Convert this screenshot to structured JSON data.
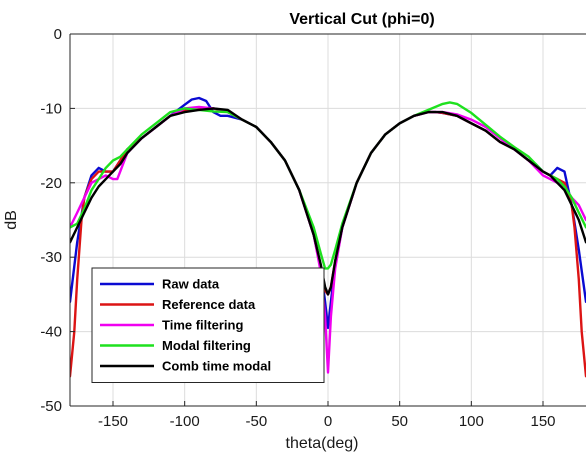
{
  "chart_data": {
    "type": "line",
    "title": "Vertical Cut (phi=0)",
    "xlabel": "theta(deg)",
    "ylabel": "dB",
    "xlim": [
      -180,
      180
    ],
    "ylim": [
      -50,
      0
    ],
    "xticks": [
      -150,
      -100,
      -50,
      0,
      50,
      100,
      150
    ],
    "yticks": [
      0,
      -10,
      -20,
      -30,
      -40,
      -50
    ],
    "grid": true,
    "legend_position": "bottom-left",
    "series": [
      {
        "name": "Raw data",
        "color": "#0a0ad2",
        "x": [
          -180,
          -175,
          -170,
          -165,
          -160,
          -155,
          -150,
          -145,
          -140,
          -130,
          -120,
          -110,
          -100,
          -95,
          -90,
          -85,
          -80,
          -75,
          -70,
          -60,
          -50,
          -40,
          -30,
          -20,
          -10,
          -5,
          -2,
          0,
          2,
          5,
          10,
          20,
          30,
          40,
          50,
          60,
          70,
          75,
          80,
          90,
          100,
          110,
          120,
          130,
          140,
          145,
          150,
          155,
          160,
          165,
          170,
          175,
          180
        ],
        "y": [
          -36,
          -28,
          -22,
          -19,
          -18,
          -18.5,
          -18.5,
          -17,
          -15.5,
          -14,
          -12.5,
          -11,
          -9.5,
          -8.8,
          -8.6,
          -9,
          -10.5,
          -11,
          -11,
          -11.5,
          -12.5,
          -14.5,
          -17,
          -21,
          -27,
          -31.5,
          -36,
          -39.5,
          -36,
          -31,
          -26,
          -20,
          -16,
          -13.5,
          -12,
          -11,
          -10.5,
          -10.5,
          -10.6,
          -11,
          -12,
          -13,
          -14.5,
          -15.5,
          -17,
          -17.5,
          -18.5,
          -19,
          -18,
          -18.5,
          -23,
          -29,
          -36
        ]
      },
      {
        "name": "Reference data",
        "color": "#dc1414",
        "x": [
          -180,
          -177,
          -175,
          -172,
          -170,
          -165,
          -160,
          -155,
          -150,
          -145,
          -140,
          -130,
          -120,
          -110,
          -100,
          -90,
          -80,
          -75,
          -70,
          -60,
          -50,
          -40,
          -30,
          -20,
          -10,
          -5,
          -2,
          0,
          2,
          5,
          10,
          20,
          30,
          40,
          50,
          60,
          70,
          75,
          80,
          90,
          100,
          110,
          120,
          130,
          140,
          150,
          155,
          160,
          165,
          170,
          172,
          175,
          177,
          180
        ],
        "y": [
          -46,
          -40,
          -33,
          -25,
          -22,
          -19.5,
          -18.5,
          -18.5,
          -18.5,
          -17,
          -15.5,
          -14,
          -12.5,
          -11,
          -10.2,
          -10,
          -10,
          -10.2,
          -10.5,
          -11.5,
          -12.5,
          -14.5,
          -17,
          -21,
          -27,
          -31.5,
          -34.5,
          -35,
          -34,
          -30.5,
          -26,
          -20,
          -16,
          -13.5,
          -12,
          -11,
          -10.5,
          -10.5,
          -10.6,
          -11,
          -12,
          -13,
          -14.5,
          -15.5,
          -17,
          -18.5,
          -19,
          -19.5,
          -20,
          -23,
          -26,
          -33,
          -40,
          -46
        ]
      },
      {
        "name": "Time filtering",
        "color": "#f000f0",
        "x": [
          -180,
          -175,
          -170,
          -165,
          -160,
          -155,
          -150,
          -147,
          -145,
          -140,
          -130,
          -120,
          -110,
          -100,
          -90,
          -80,
          -70,
          -60,
          -50,
          -40,
          -30,
          -20,
          -10,
          -5,
          -2,
          0,
          2,
          5,
          10,
          20,
          30,
          40,
          50,
          60,
          70,
          80,
          90,
          100,
          110,
          120,
          130,
          140,
          145,
          150,
          155,
          160,
          165,
          170,
          175,
          180
        ],
        "y": [
          -26,
          -24,
          -22,
          -20,
          -19.5,
          -19,
          -19.5,
          -19.5,
          -18.5,
          -16,
          -14,
          -12.5,
          -11,
          -10,
          -9.8,
          -10,
          -10.3,
          -11.5,
          -12.5,
          -14.5,
          -17,
          -21,
          -27,
          -32,
          -38,
          -45.5,
          -38,
          -31.5,
          -26,
          -20,
          -16,
          -13.5,
          -12,
          -11,
          -10.5,
          -10.5,
          -10.8,
          -11.5,
          -12.5,
          -14,
          -15.5,
          -17,
          -18,
          -19,
          -19.5,
          -20,
          -20.5,
          -22,
          -23,
          -25
        ]
      },
      {
        "name": "Modal filtering",
        "color": "#1ee11e",
        "x": [
          -180,
          -175,
          -170,
          -165,
          -160,
          -155,
          -150,
          -145,
          -140,
          -130,
          -120,
          -110,
          -100,
          -90,
          -80,
          -70,
          -60,
          -50,
          -40,
          -30,
          -20,
          -10,
          -5,
          -2,
          0,
          2,
          5,
          10,
          20,
          30,
          40,
          50,
          60,
          70,
          80,
          85,
          90,
          100,
          110,
          120,
          130,
          140,
          145,
          150,
          155,
          160,
          165,
          170,
          175,
          180
        ],
        "y": [
          -26,
          -25.5,
          -23.5,
          -21,
          -19.5,
          -18,
          -17,
          -16.5,
          -15.5,
          -13.5,
          -12,
          -10.5,
          -10,
          -10.2,
          -10.4,
          -10.5,
          -11.5,
          -12.5,
          -14.5,
          -17,
          -21,
          -26,
          -29.5,
          -31.5,
          -31.5,
          -31,
          -29,
          -25.5,
          -20,
          -16,
          -13.5,
          -12,
          -11,
          -10.2,
          -9.4,
          -9.2,
          -9.4,
          -10.6,
          -12.2,
          -13.8,
          -15.2,
          -16.5,
          -17.5,
          -18.5,
          -19,
          -19.5,
          -20.5,
          -22,
          -24,
          -26
        ]
      },
      {
        "name": "Comb time modal",
        "color": "#000000",
        "x": [
          -180,
          -175,
          -170,
          -165,
          -160,
          -155,
          -150,
          -145,
          -140,
          -130,
          -120,
          -110,
          -100,
          -90,
          -80,
          -70,
          -60,
          -50,
          -40,
          -30,
          -20,
          -10,
          -5,
          -2,
          0,
          2,
          5,
          10,
          20,
          30,
          40,
          50,
          60,
          70,
          80,
          90,
          100,
          110,
          120,
          130,
          140,
          150,
          155,
          160,
          165,
          170,
          175,
          180
        ],
        "y": [
          -28,
          -26,
          -24,
          -22,
          -20.5,
          -19.5,
          -18.5,
          -17.5,
          -16,
          -14,
          -12.5,
          -11,
          -10.5,
          -10.2,
          -10,
          -10.2,
          -11.5,
          -12.5,
          -14.5,
          -17,
          -21,
          -27,
          -31,
          -34,
          -35,
          -34,
          -30.5,
          -26,
          -20,
          -16,
          -13.5,
          -12,
          -11,
          -10.5,
          -10.5,
          -11,
          -12,
          -13,
          -14.5,
          -15.5,
          -17,
          -18.5,
          -19,
          -20,
          -21,
          -23,
          -25,
          -28
        ]
      }
    ]
  }
}
